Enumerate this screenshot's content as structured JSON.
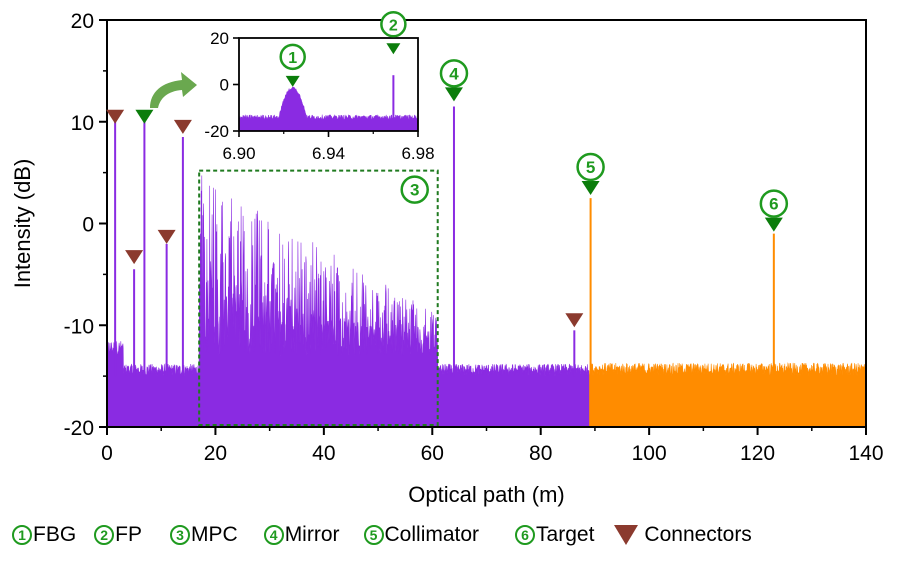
{
  "colors": {
    "trace_main": "#8a2be2",
    "trace_far": "#ff8c00",
    "marker_green": "#0b7d0b",
    "marker_ring": "#1f9a1f",
    "connector": "#8b3a2e",
    "box": "#1f7a1f",
    "arrow": "#6aa84f"
  },
  "chart_data": [
    {
      "type": "line",
      "xlabel": "Optical path (m)",
      "ylabel": "Intensity (dB)",
      "xlim": [
        0,
        140
      ],
      "ylim": [
        -20,
        20
      ],
      "x_ticks": [
        "0",
        "20",
        "40",
        "60",
        "80",
        "100",
        "120",
        "140"
      ],
      "y_ticks": [
        "-20",
        "-10",
        "0",
        "10",
        "20"
      ],
      "noise_floor_dB": -15,
      "series": [
        {
          "x_range": [
            0,
            89
          ],
          "color": "purple"
        },
        {
          "x_range": [
            89,
            140
          ],
          "color": "orange"
        }
      ],
      "peaks": [
        {
          "x": 1.5,
          "y": 10.0
        },
        {
          "x": 5.0,
          "y": -4.5
        },
        {
          "x": 6.9,
          "y": 10.0
        },
        {
          "x": 11.0,
          "y": -2.0
        },
        {
          "x": 14.0,
          "y": 8.5
        },
        {
          "x": 64.0,
          "y": 11.5
        },
        {
          "x": 86.2,
          "y": -10.5
        },
        {
          "x": 89.2,
          "y": 2.5
        },
        {
          "x": 123.0,
          "y": -1.0
        }
      ],
      "mpc_region": {
        "x": [
          17,
          61
        ],
        "y_max": 5,
        "y_min": -15
      },
      "markers": [
        {
          "label": "①",
          "x": 6.9,
          "y": 10.0,
          "kind": "feature"
        },
        {
          "label": "",
          "x": 1.5,
          "y": 10.0,
          "kind": "connector"
        },
        {
          "label": "",
          "x": 5.0,
          "y": -3.8,
          "kind": "connector"
        },
        {
          "label": "",
          "x": 11.0,
          "y": -1.8,
          "kind": "connector"
        },
        {
          "label": "",
          "x": 14.0,
          "y": 9.0,
          "kind": "connector"
        },
        {
          "label": "④",
          "x": 64.0,
          "y": 12.2,
          "kind": "feature"
        },
        {
          "label": "",
          "x": 86.2,
          "y": -10.0,
          "kind": "connector"
        },
        {
          "label": "⑤",
          "x": 89.2,
          "y": 3.0,
          "kind": "feature"
        },
        {
          "label": "⑥",
          "x": 123.0,
          "y": -0.6,
          "kind": "feature"
        }
      ],
      "box_label": "③"
    },
    {
      "type": "line",
      "xlim": [
        6.9,
        6.98
      ],
      "ylim": [
        -20,
        20
      ],
      "x_ticks": [
        "6.90",
        "6.94",
        "6.98"
      ],
      "y_ticks": [
        "-20",
        "0",
        "20"
      ],
      "peaks": [
        {
          "x": 6.924,
          "y": -2,
          "width": 0.012
        },
        {
          "x": 6.969,
          "y": 4
        }
      ],
      "markers": [
        {
          "label": "①",
          "x": 6.924
        },
        {
          "label": "②",
          "x": 6.969
        }
      ]
    }
  ],
  "legend": [
    {
      "symbol": "①",
      "label": "FBG"
    },
    {
      "symbol": "②",
      "label": "FP"
    },
    {
      "symbol": "③",
      "label": "MPC"
    },
    {
      "symbol": "④",
      "label": "Mirror"
    },
    {
      "symbol": "⑤",
      "label": "Collimator"
    },
    {
      "symbol": "⑥",
      "label": "Target"
    },
    {
      "symbol": "triangle",
      "label": "Connectors"
    }
  ]
}
